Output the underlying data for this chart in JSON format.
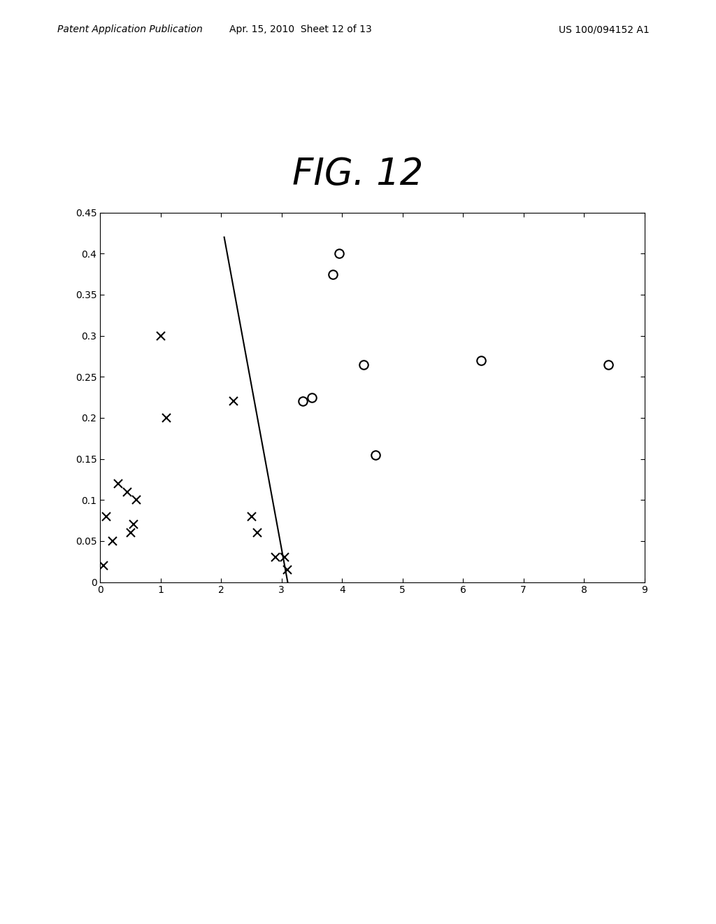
{
  "title_text": "FIG. 12",
  "header_left": "Patent Application Publication",
  "header_center": "Apr. 15, 2010  Sheet 12 of 13",
  "header_right": "US 100/094152 A1",
  "x_data_x_marks": [
    0.05,
    0.1,
    0.2,
    0.3,
    0.45,
    0.5,
    0.55,
    0.6,
    1.0,
    1.1,
    2.2,
    2.5,
    2.6,
    2.9,
    3.05,
    3.1
  ],
  "y_data_x_marks": [
    0.02,
    0.08,
    0.05,
    0.12,
    0.11,
    0.06,
    0.07,
    0.1,
    0.3,
    0.2,
    0.22,
    0.08,
    0.06,
    0.03,
    0.03,
    0.015
  ],
  "x_data_o_marks": [
    3.35,
    3.5,
    3.85,
    3.95,
    4.35,
    4.55,
    6.3,
    8.4
  ],
  "y_data_o_marks": [
    0.22,
    0.225,
    0.375,
    0.4,
    0.265,
    0.155,
    0.27,
    0.265
  ],
  "line_x": [
    2.05,
    3.1
  ],
  "line_y": [
    0.42,
    0.0
  ],
  "xlim": [
    0,
    9
  ],
  "ylim": [
    0,
    0.45
  ],
  "xticks": [
    0,
    1,
    2,
    3,
    4,
    5,
    6,
    7,
    8,
    9
  ],
  "yticks": [
    0,
    0.05,
    0.1,
    0.15,
    0.2,
    0.25,
    0.3,
    0.35,
    0.4,
    0.45
  ],
  "background_color": "#ffffff",
  "line_color": "#000000",
  "marker_color": "#000000"
}
